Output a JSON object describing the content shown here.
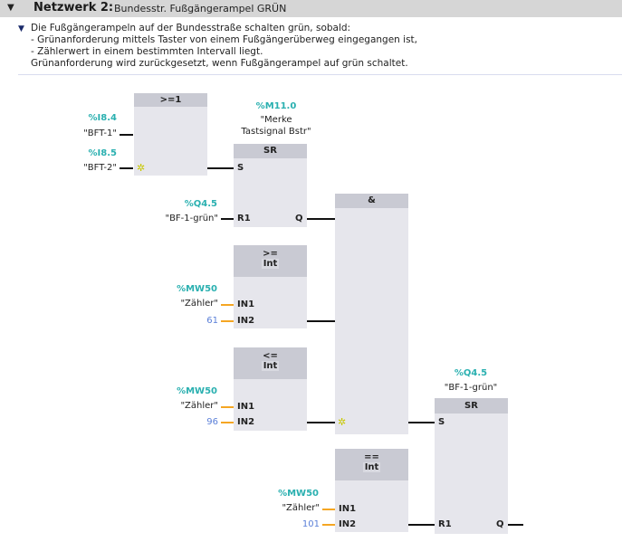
{
  "network": {
    "label": "Netzwerk 2:",
    "title": "Bundesstr. Fußgängerampel  GRÜN",
    "comment": [
      "Die Fußgängerampeln auf der Bundesstraße schalten grün, sobald:",
      "- Grünanforderung mittels Taster von einem Fußgängerüberweg eingegangen ist,",
      "- Zählerwert in einem bestimmten Intervall liegt.",
      "Grünanforderung wird zurückgesetzt, wenn Fußgängerampel auf grün schaltet."
    ]
  },
  "or_block": {
    "title": ">=1",
    "in1_addr": "%I8.4",
    "in1_tag": "\"BFT-1\"",
    "in2_addr": "%I8.5",
    "in2_tag": "\"BFT-2\""
  },
  "sr1": {
    "title": "SR",
    "addr": "%M11.0",
    "tag1": "\"Merke",
    "tag2": "Tastsignal Bstr\"",
    "s": "S",
    "r1": "R1",
    "q": "Q",
    "r1_addr": "%Q4.5",
    "r1_tag": "\"BF-1-grün\""
  },
  "and_block": {
    "title": "&"
  },
  "cmp_ge": {
    "op": ">=",
    "type": "Int",
    "in1": "IN1",
    "in2": "IN2",
    "in1_addr": "%MW50",
    "in1_tag": "\"Zähler\"",
    "in2_value": "61"
  },
  "cmp_le": {
    "op": "<=",
    "type": "Int",
    "in1": "IN1",
    "in2": "IN2",
    "in1_addr": "%MW50",
    "in1_tag": "\"Zähler\"",
    "in2_value": "96"
  },
  "cmp_eq": {
    "op": "==",
    "type": "Int",
    "in1": "IN1",
    "in2": "IN2",
    "in1_addr": "%MW50",
    "in1_tag": "\"Zähler\"",
    "in2_value": "101"
  },
  "sr2": {
    "title": "SR",
    "addr": "%Q4.5",
    "tag": "\"BF-1-grün\"",
    "s": "S",
    "r1": "R1",
    "q": "Q"
  },
  "colors": {
    "address": "#2ab0b0",
    "constant": "#5a7fd8",
    "int_wire": "#f5a623",
    "box": "#e6e6ec",
    "box_title": "#c9cad3"
  }
}
